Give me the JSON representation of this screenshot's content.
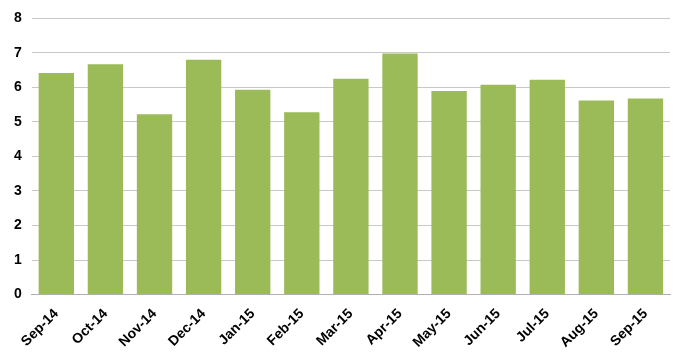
{
  "chart_data": {
    "type": "bar",
    "categories": [
      "Sep-14",
      "Oct-14",
      "Nov-14",
      "Dec-14",
      "Jan-15",
      "Feb-15",
      "Mar-15",
      "Apr-15",
      "May-15",
      "Jun-15",
      "Jul-15",
      "Aug-15",
      "Sep-15"
    ],
    "values": [
      6.42,
      6.67,
      5.22,
      6.8,
      5.93,
      5.28,
      6.25,
      6.98,
      5.9,
      6.08,
      6.22,
      5.62,
      5.68
    ],
    "color": "#9bbb59",
    "ylim": [
      0,
      8
    ],
    "yticks": [
      0,
      1,
      2,
      3,
      4,
      5,
      6,
      7,
      8
    ],
    "grid": true
  }
}
